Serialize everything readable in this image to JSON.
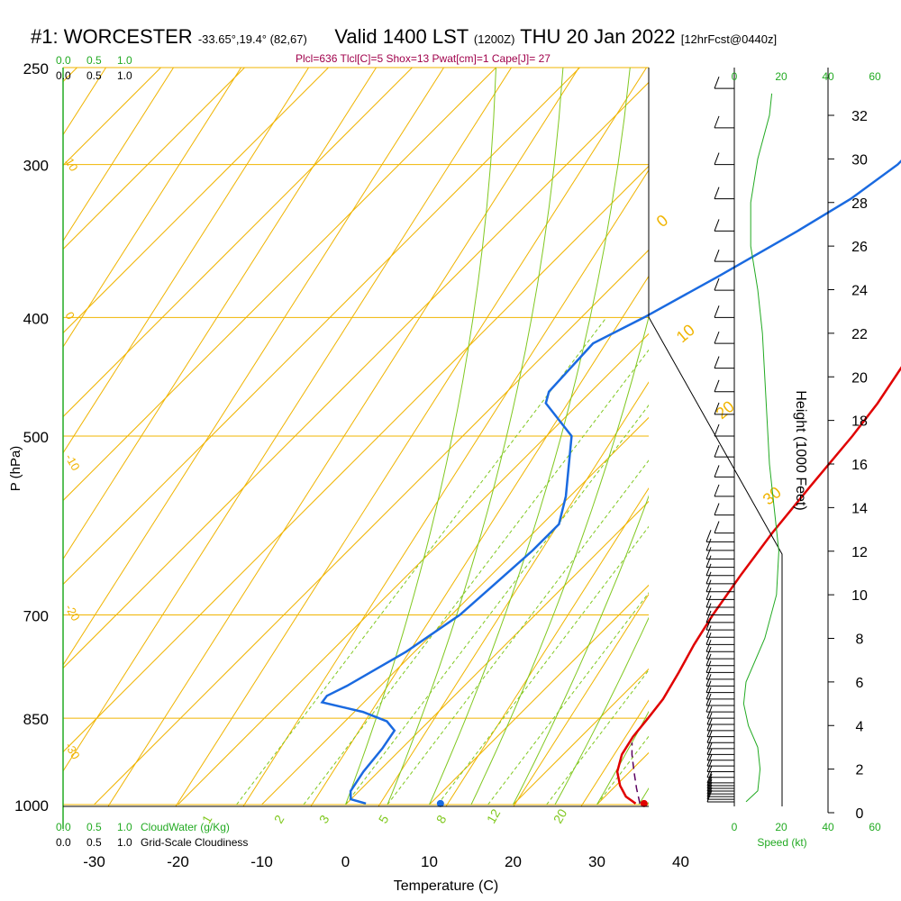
{
  "title": {
    "station": "#1: WORCESTER",
    "coords": "-33.65°,19.4° (82,67)",
    "valid": "Valid 1400 LST",
    "utc": "(1200Z)",
    "date": "THU 20 Jan 2022",
    "forecast": "[12hrFcst@0440z]"
  },
  "indices_line": "Plcl=636 Tlcl[C]=5 Shox=13 Pwat[cm]=1 Cape[J]= 27",
  "colors": {
    "temperature": "#e00000",
    "dewpoint": "#1a6ae0",
    "isotherm_isobar": "#f0b400",
    "mixing_ratio": "#80c820",
    "green": "#22aa22",
    "parcel": "#5a0060",
    "indices": "#a0004b"
  },
  "labels": {
    "cloudwater_top": [
      "0.0",
      "0.5",
      "1.0"
    ],
    "cloudiness_top": [
      "0.0",
      "0.5",
      "1.0"
    ],
    "cloudwater_bottom": [
      "0.0",
      "0.5",
      "1.0"
    ],
    "cloudwater_bottom_label": "CloudWater (g/Kg)",
    "cloudiness_bottom": [
      "0.0",
      "0.5",
      "1.0"
    ],
    "cloudiness_bottom_label": "Grid-Scale Cloudiness",
    "speed_ticks": [
      "0",
      "20",
      "40",
      "60"
    ],
    "speed_label": "Speed (kt)"
  },
  "chart_data": {
    "type": "skew-t",
    "xlabel": "Temperature (C)",
    "ylabel": "P (hPa)",
    "y2label": "Height (1000 Feet)",
    "x_ticks": [
      -30,
      -20,
      -10,
      0,
      10,
      20,
      30,
      40
    ],
    "p_ticks": [
      250,
      300,
      400,
      500,
      700,
      850,
      1000
    ],
    "height_ticks": [
      0,
      2,
      4,
      6,
      8,
      10,
      12,
      14,
      16,
      18,
      20,
      22,
      24,
      26,
      28,
      30,
      32
    ],
    "isotherm_labels": [
      {
        "value": "0",
        "p": 338
      },
      {
        "value": "10",
        "p": 420
      },
      {
        "value": "20",
        "p": 485
      },
      {
        "value": "30",
        "p": 570
      }
    ],
    "isotherm_left_labels": [
      {
        "value": "10",
        "p": 298
      },
      {
        "value": "0",
        "p": 398
      },
      {
        "value": "-10",
        "p": 520
      },
      {
        "value": "-20",
        "p": 690
      },
      {
        "value": "-30",
        "p": 895
      }
    ],
    "mixing_ratio_labels": [
      "1",
      "2",
      "3",
      "5",
      "8",
      "12",
      "20"
    ],
    "temperature": [
      {
        "p": 998,
        "t": 34.5
      },
      {
        "p": 985,
        "t": 32.5
      },
      {
        "p": 965,
        "t": 30.5
      },
      {
        "p": 940,
        "t": 28.5
      },
      {
        "p": 910,
        "t": 27.0
      },
      {
        "p": 880,
        "t": 26.2
      },
      {
        "p": 850,
        "t": 25.8
      },
      {
        "p": 820,
        "t": 25.3
      },
      {
        "p": 780,
        "t": 24.0
      },
      {
        "p": 740,
        "t": 22.5
      },
      {
        "p": 700,
        "t": 21.2
      },
      {
        "p": 650,
        "t": 19.8
      },
      {
        "p": 600,
        "t": 18.5
      },
      {
        "p": 550,
        "t": 17.5
      },
      {
        "p": 500,
        "t": 16.5
      },
      {
        "p": 470,
        "t": 15.6
      },
      {
        "p": 440,
        "t": 14.2
      },
      {
        "p": 400,
        "t": 12.0
      },
      {
        "p": 370,
        "t": 10.0
      },
      {
        "p": 340,
        "t": 6.5
      },
      {
        "p": 300,
        "t": 1.5
      },
      {
        "p": 275,
        "t": -1.5
      },
      {
        "p": 265,
        "t": -2.5
      }
    ],
    "dewpoint": [
      {
        "p": 998,
        "t": 2.3
      },
      {
        "p": 990,
        "t": 0.0
      },
      {
        "p": 975,
        "t": -1.0
      },
      {
        "p": 940,
        "t": -1.8
      },
      {
        "p": 900,
        "t": -2.3
      },
      {
        "p": 870,
        "t": -3.0
      },
      {
        "p": 855,
        "t": -5.0
      },
      {
        "p": 840,
        "t": -9.0
      },
      {
        "p": 825,
        "t": -15.0
      },
      {
        "p": 815,
        "t": -15.2
      },
      {
        "p": 800,
        "t": -14.0
      },
      {
        "p": 750,
        "t": -11.0
      },
      {
        "p": 700,
        "t": -9.0
      },
      {
        "p": 660,
        "t": -8.5
      },
      {
        "p": 620,
        "t": -8.0
      },
      {
        "p": 590,
        "t": -8.0
      },
      {
        "p": 560,
        "t": -10.5
      },
      {
        "p": 500,
        "t": -17.0
      },
      {
        "p": 470,
        "t": -24.0
      },
      {
        "p": 460,
        "t": -25.0
      },
      {
        "p": 420,
        "t": -25.5
      },
      {
        "p": 400,
        "t": -22.5
      },
      {
        "p": 370,
        "t": -18.5
      },
      {
        "p": 340,
        "t": -14.5
      },
      {
        "p": 320,
        "t": -12.0
      },
      {
        "p": 300,
        "t": -10.5
      },
      {
        "p": 290,
        "t": -10.5
      },
      {
        "p": 275,
        "t": -11.0
      },
      {
        "p": 265,
        "t": -11.5
      }
    ],
    "parcel": [
      {
        "p": 998,
        "t": 35.0
      },
      {
        "p": 970,
        "t": 32.8
      },
      {
        "p": 940,
        "t": 30.5
      },
      {
        "p": 910,
        "t": 28.2
      },
      {
        "p": 890,
        "t": 26.8
      }
    ],
    "surface_temperature": {
      "p": 998,
      "t": 35.5
    },
    "surface_dewpoint": {
      "p": 998,
      "t": 11.2
    },
    "wind_speed_profile": [
      {
        "h": 0.5,
        "s": 5
      },
      {
        "h": 1,
        "s": 10
      },
      {
        "h": 2,
        "s": 11
      },
      {
        "h": 3,
        "s": 10
      },
      {
        "h": 4,
        "s": 6
      },
      {
        "h": 5,
        "s": 4
      },
      {
        "h": 6,
        "s": 5
      },
      {
        "h": 8,
        "s": 13
      },
      {
        "h": 10,
        "s": 18
      },
      {
        "h": 12,
        "s": 19
      },
      {
        "h": 14,
        "s": 17
      },
      {
        "h": 16,
        "s": 15
      },
      {
        "h": 18,
        "s": 14
      },
      {
        "h": 20,
        "s": 13
      },
      {
        "h": 22,
        "s": 12
      },
      {
        "h": 24,
        "s": 10
      },
      {
        "h": 26,
        "s": 7
      },
      {
        "h": 28,
        "s": 7
      },
      {
        "h": 30,
        "s": 10
      },
      {
        "h": 32,
        "s": 15
      },
      {
        "h": 33,
        "s": 16
      }
    ],
    "wind_barbs_p": [
      995,
      990,
      985,
      980,
      975,
      970,
      965,
      960,
      950,
      940,
      930,
      920,
      910,
      900,
      890,
      880,
      870,
      860,
      850,
      840,
      830,
      820,
      810,
      800,
      790,
      780,
      770,
      760,
      750,
      740,
      730,
      720,
      710,
      700,
      690,
      680,
      670,
      660,
      650,
      640,
      630,
      620,
      610,
      600,
      580,
      560,
      540,
      520,
      500,
      480,
      460,
      440,
      420,
      400,
      380,
      360,
      340,
      320,
      300,
      280,
      260
    ]
  }
}
